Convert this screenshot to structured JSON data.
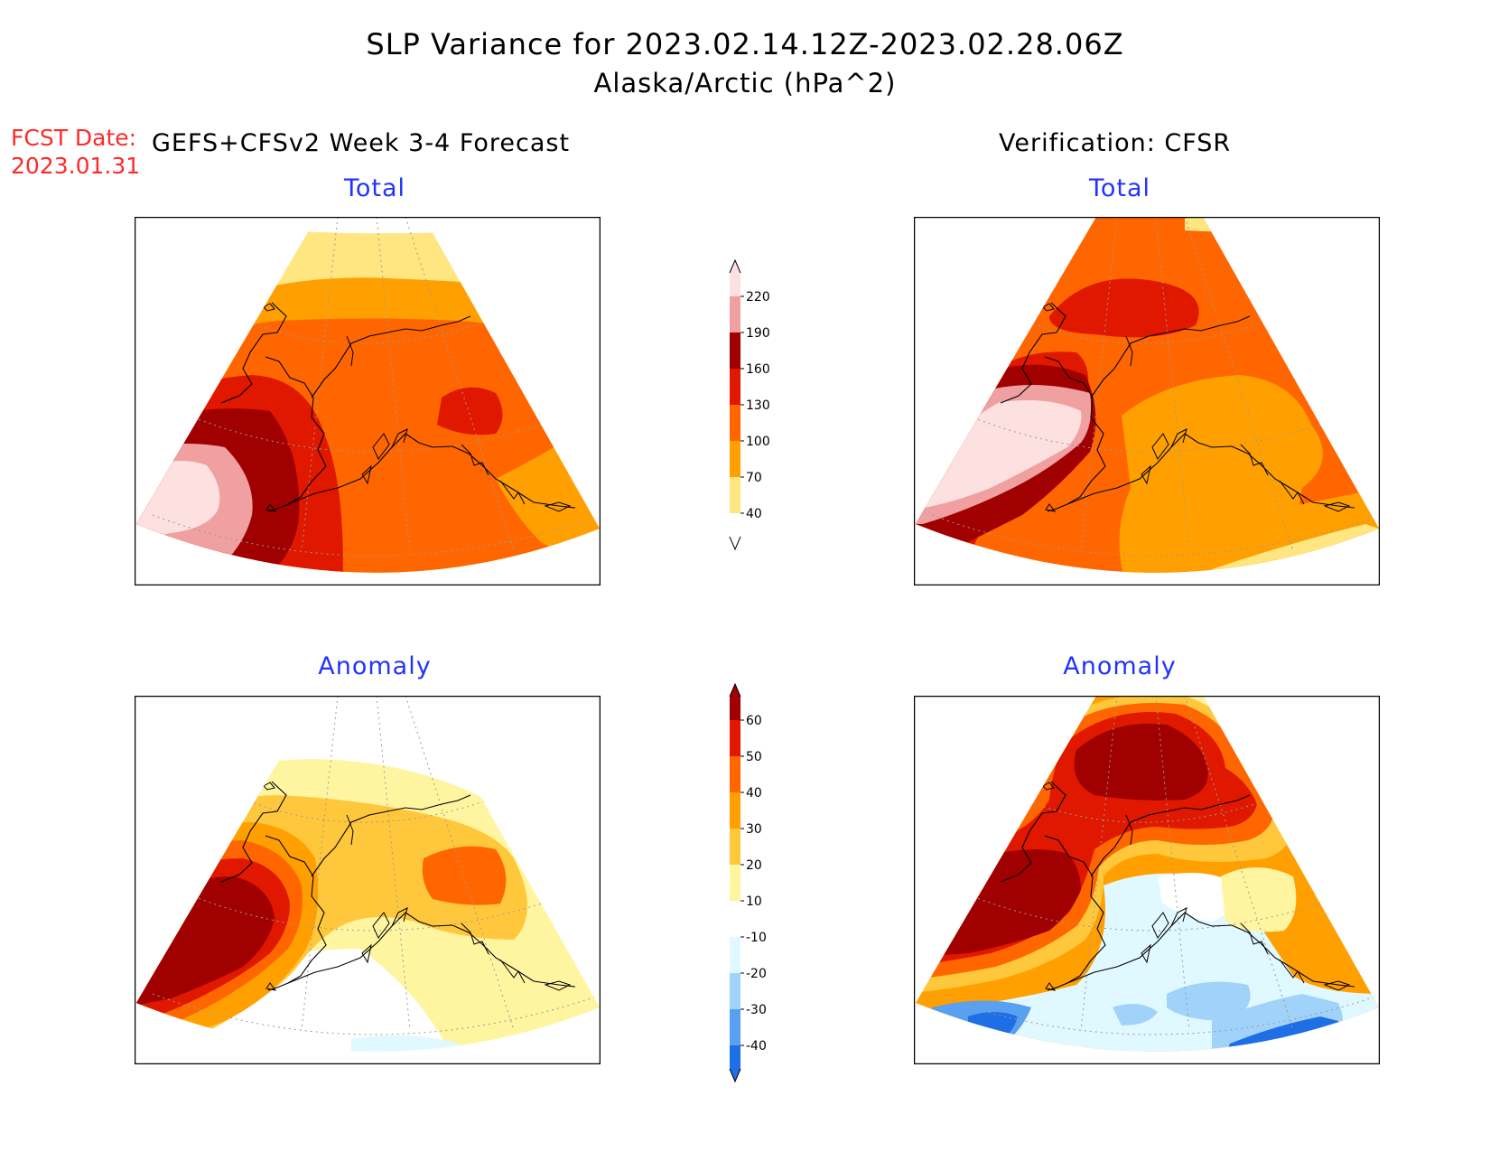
{
  "header": {
    "title": "SLP Variance for 2023.02.14.12Z-2023.02.28.06Z",
    "subtitle": "Alaska/Arctic (hPa^2)",
    "fcst_label": "FCST Date:",
    "fcst_date": "2023.01.31",
    "left_column_title": "GEFS+CFSv2 Week 3-4 Forecast",
    "right_column_title": "Verification: CFSR"
  },
  "panels": {
    "forecast_total": {
      "title": "Total"
    },
    "verification_total": {
      "title": "Total"
    },
    "forecast_anomaly": {
      "title": "Anomaly"
    },
    "verification_anomaly": {
      "title": "Anomaly"
    }
  },
  "colorbars": {
    "total": {
      "levels": [
        40,
        70,
        100,
        130,
        160,
        190,
        220
      ],
      "labels": [
        "40",
        "70",
        "100",
        "130",
        "160",
        "190",
        "220"
      ],
      "colors": [
        "#ffffff",
        "#ffe680",
        "#ffa000",
        "#ff6600",
        "#e01800",
        "#a00000",
        "#f0a0a0",
        "#fde0e0"
      ]
    },
    "anomaly": {
      "levels": [
        -40,
        -30,
        -20,
        -10,
        10,
        20,
        30,
        40,
        50,
        60
      ],
      "labels": [
        "-40",
        "-30",
        "-20",
        "-10",
        "10",
        "20",
        "30",
        "40",
        "50",
        "60"
      ],
      "colors": [
        "#1e6ee6",
        "#5aa0f0",
        "#a0d2fa",
        "#e0f8ff",
        "#ffffff",
        "#fff5a0",
        "#ffc83c",
        "#ffa000",
        "#ff6600",
        "#e01800",
        "#a00000"
      ]
    }
  }
}
